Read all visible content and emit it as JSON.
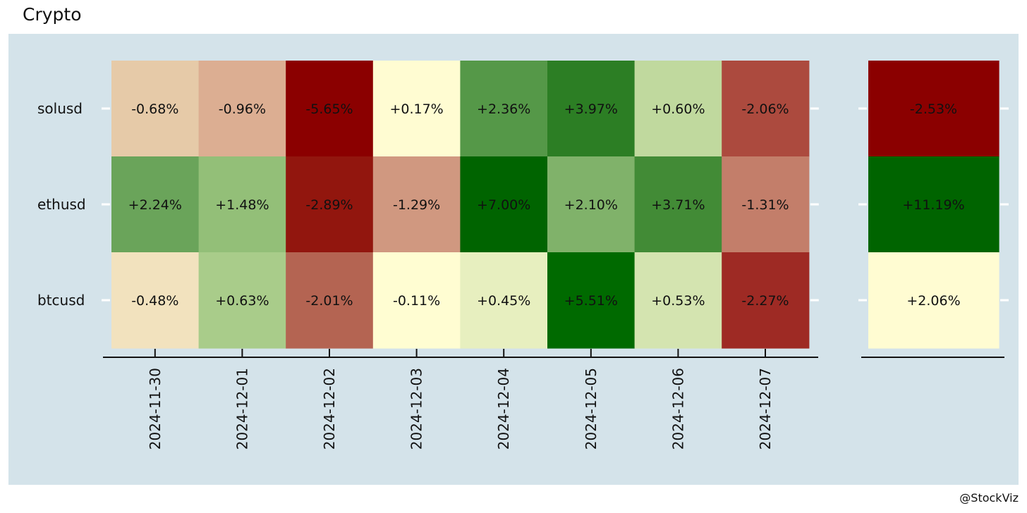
{
  "title": "Crypto",
  "credit": "@StockViz",
  "chart_data": [
    {
      "type": "heatmap",
      "title": "",
      "xlabel": "",
      "ylabel": "",
      "x": [
        "2024-11-30",
        "2024-12-01",
        "2024-12-02",
        "2024-12-03",
        "2024-12-04",
        "2024-12-05",
        "2024-12-06",
        "2024-12-07"
      ],
      "y": [
        "solusd",
        "ethusd",
        "btcusd"
      ],
      "values": [
        [
          -0.68,
          -0.96,
          -5.65,
          0.17,
          2.36,
          3.97,
          0.6,
          -2.06
        ],
        [
          2.24,
          1.48,
          -2.89,
          -1.29,
          7.0,
          2.1,
          3.71,
          -1.31
        ],
        [
          -0.48,
          0.63,
          -2.01,
          -0.11,
          0.45,
          5.51,
          0.53,
          -2.27
        ]
      ],
      "labels": [
        [
          "-0.68%",
          "-0.96%",
          "-5.65%",
          "+0.17%",
          "+2.36%",
          "+3.97%",
          "+0.60%",
          "-2.06%"
        ],
        [
          "+2.24%",
          "+1.48%",
          "-2.89%",
          "-1.29%",
          "+7.00%",
          "+2.10%",
          "+3.71%",
          "-1.31%"
        ],
        [
          "-0.48%",
          "+0.63%",
          "-2.01%",
          "-0.11%",
          "+0.45%",
          "+5.51%",
          "+0.53%",
          "-2.27%"
        ]
      ],
      "colors": [
        [
          "#e6caa8",
          "#dcae92",
          "#8b0000",
          "#fffcd2",
          "#559848",
          "#2c7e24",
          "#c0d99e",
          "#ac4a3e"
        ],
        [
          "#6aa45a",
          "#93bf78",
          "#92160e",
          "#d09880",
          "#006400",
          "#80b26a",
          "#428b36",
          "#c37e6a"
        ],
        [
          "#f2e2be",
          "#a9cc8a",
          "#b46452",
          "#fffdd2",
          "#e7efbf",
          "#006a00",
          "#d4e4b0",
          "#9e2a24"
        ]
      ],
      "grid": false
    },
    {
      "type": "heatmap",
      "title": "",
      "x": [],
      "y": [
        "solusd",
        "ethusd",
        "btcusd"
      ],
      "values": [
        [
          -2.53
        ],
        [
          11.19
        ],
        [
          2.06
        ]
      ],
      "labels": [
        [
          "-2.53%"
        ],
        [
          "+11.19%"
        ],
        [
          "+2.06%"
        ]
      ],
      "colors": [
        [
          "#8b0000"
        ],
        [
          "#006400"
        ],
        [
          "#fffcd2"
        ]
      ],
      "grid": false
    }
  ]
}
